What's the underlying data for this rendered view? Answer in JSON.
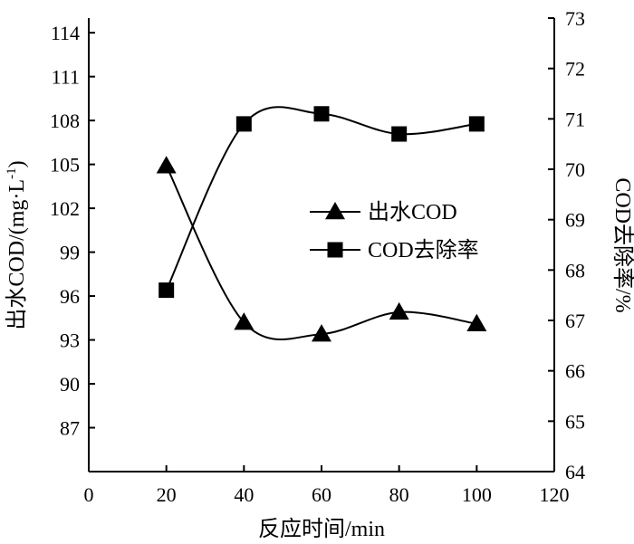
{
  "chart_data": {
    "type": "line",
    "x": [
      20,
      40,
      60,
      80,
      100
    ],
    "xlabel": "反应时间/min",
    "ylabel_left": "出水COD/(mg·L",
    "ylabel_left_sup": "-1",
    "ylabel_left_close": ")",
    "ylabel_right": "COD去除率/%",
    "xlim": [
      0,
      120
    ],
    "ylim_left": [
      84,
      115
    ],
    "ylim_right": [
      64,
      73
    ],
    "x_ticks": [
      "0",
      "20",
      "40",
      "60",
      "80",
      "100",
      "120"
    ],
    "y_left_ticks": [
      "87",
      "90",
      "93",
      "96",
      "99",
      "102",
      "105",
      "108",
      "111",
      "114"
    ],
    "y_right_ticks": [
      "64",
      "65",
      "66",
      "67",
      "68",
      "69",
      "70",
      "71",
      "72",
      "73"
    ],
    "grid": false,
    "legend_position": "center-right",
    "series": [
      {
        "name": "出水COD",
        "axis": "left",
        "marker": "triangle",
        "values": [
          104.9,
          94.2,
          93.4,
          94.9,
          94.1
        ]
      },
      {
        "name": "COD去除率",
        "axis": "right",
        "marker": "square",
        "values": [
          67.6,
          70.9,
          71.1,
          70.7,
          70.9
        ]
      }
    ],
    "colors": {
      "line": "#000000",
      "marker": "#000000"
    }
  }
}
